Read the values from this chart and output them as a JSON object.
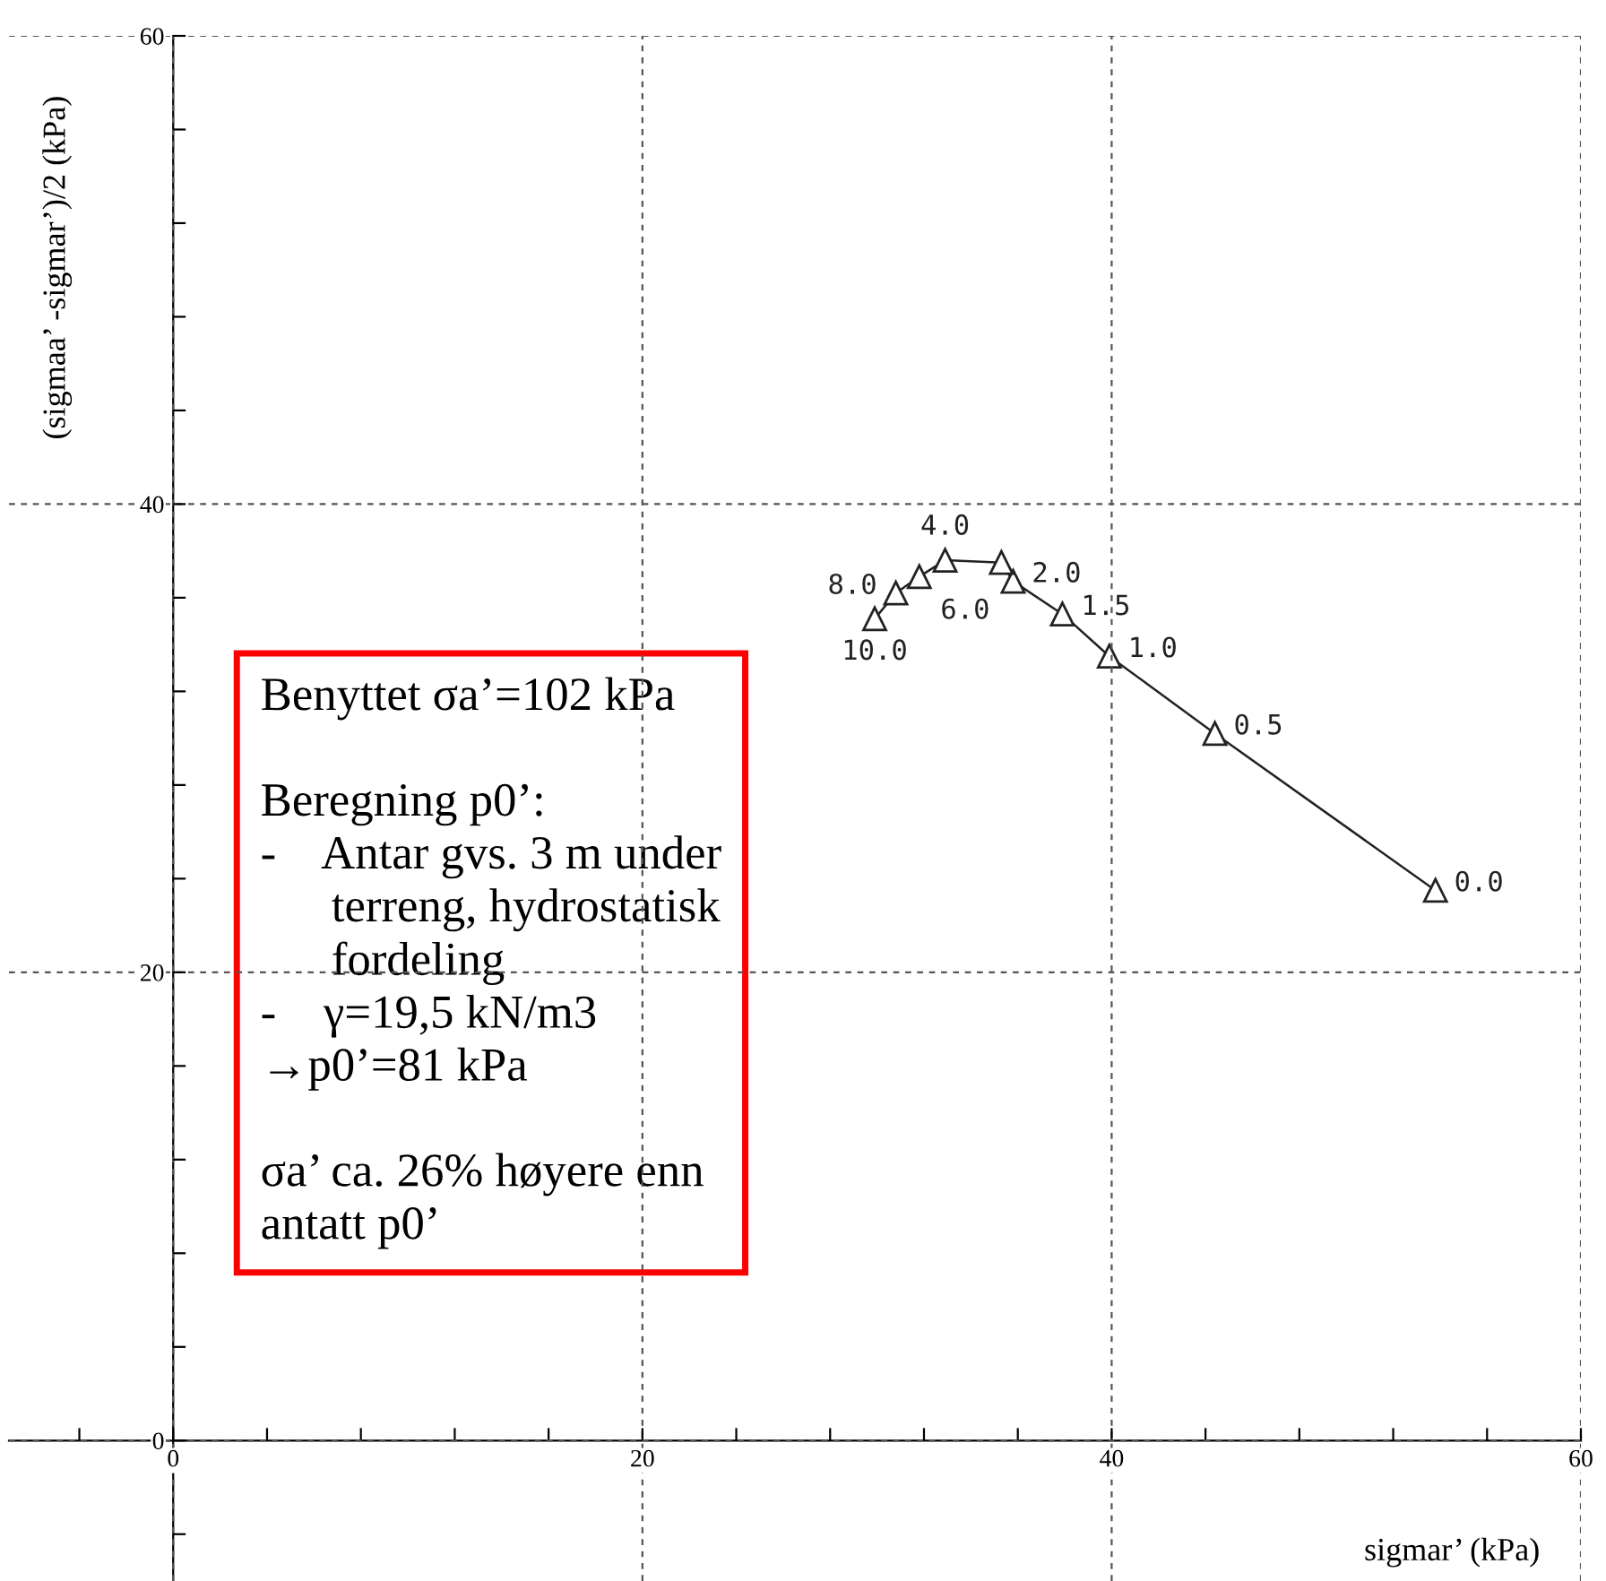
{
  "chart_data": {
    "type": "line",
    "xlabel": "sigmar’ (kPa)",
    "ylabel": "(sigmaa’ -sigmar’)/2 (kPa)",
    "x": [
      53.8,
      44.4,
      39.9,
      37.9,
      35.8,
      35.3,
      32.9,
      31.8,
      30.8,
      29.9
    ],
    "series": [
      {
        "color": "#222222",
        "values": [
          23.5,
          30.2,
          33.5,
          35.3,
          36.7,
          37.5,
          37.6,
          36.9,
          36.2,
          35.1
        ]
      }
    ],
    "marker": "triangle",
    "line_style": "solid",
    "xlim": [
      -7,
      60
    ],
    "ylim": [
      -6,
      60
    ],
    "xticks": [
      {
        "value": -4,
        "label": null
      },
      0,
      {
        "value": 4,
        "label": null
      },
      {
        "value": 8,
        "label": null
      },
      {
        "value": 12,
        "label": null
      },
      {
        "value": 16,
        "label": null
      },
      20,
      {
        "value": 24,
        "label": null
      },
      {
        "value": 28,
        "label": null
      },
      {
        "value": 32,
        "label": null
      },
      {
        "value": 36,
        "label": null
      },
      40,
      {
        "value": 44,
        "label": null
      },
      {
        "value": 48,
        "label": null
      },
      {
        "value": 52,
        "label": null
      },
      {
        "value": 56,
        "label": null
      },
      60
    ],
    "yticks": [
      {
        "value": -4,
        "label": null
      },
      0,
      {
        "value": 4,
        "label": null
      },
      {
        "value": 8,
        "label": null
      },
      {
        "value": 12,
        "label": null
      },
      {
        "value": 16,
        "label": null
      },
      20,
      {
        "value": 24,
        "label": null
      },
      {
        "value": 28,
        "label": null
      },
      {
        "value": 32,
        "label": null
      },
      {
        "value": 36,
        "label": null
      },
      40,
      {
        "value": 44,
        "label": null
      },
      {
        "value": 48,
        "label": null
      },
      {
        "value": 52,
        "label": null
      },
      {
        "value": 56,
        "label": null
      },
      60
    ],
    "grid": true,
    "annotations": [
      {
        "text": "0.0",
        "x": 53.8,
        "y": 23.5
      },
      {
        "text": "0.5",
        "x": 44.4,
        "y": 30.2
      },
      {
        "text": "1.0",
        "x": 39.9,
        "y": 33.5
      },
      {
        "text": "1.5",
        "x": 37.9,
        "y": 35.3
      },
      {
        "text": "2.0",
        "x": 35.8,
        "y": 36.7
      },
      {
        "text": "4.0",
        "x": 32.9,
        "y": 37.6
      },
      {
        "text": "6.0",
        "x": 31.8,
        "y": 36.9
      },
      {
        "text": "8.0",
        "x": 30.8,
        "y": 36.2
      },
      {
        "text": "10.0",
        "x": 29.9,
        "y": 35.1
      },
      "Benyttet σa’=102 kPa\n\nBeregning p0’:\n-    Antar gvs. 3 m under\n      terreng, hydrostatisk\n      fordeling\n-    γ=19,5 kN/m3\n→p0’=81 kPa\n\nσa’ ca. 26% høyere enn\nantatt p0’"
    ]
  }
}
